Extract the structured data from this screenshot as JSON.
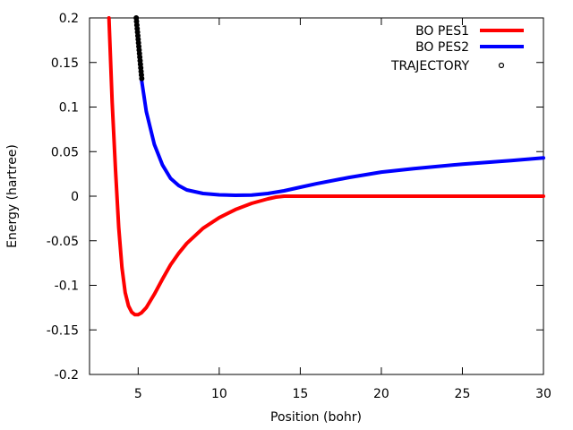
{
  "chart_data": {
    "type": "line",
    "title": "",
    "xlabel": "Position (bohr)",
    "ylabel": "Energy (hartree)",
    "xlim": [
      2,
      30
    ],
    "ylim": [
      -0.2,
      0.2
    ],
    "xticks": [
      "5",
      "10",
      "15",
      "20",
      "25",
      "30"
    ],
    "yticks": [
      "-0.2",
      "-0.15",
      "-0.1",
      "-0.05",
      "0",
      "0.05",
      "0.1",
      "0.15",
      "0.2"
    ],
    "grid": false,
    "legend_position": "top-right",
    "series": [
      {
        "name": "BO PES1",
        "color": "#ff0000",
        "style": "line",
        "x": [
          3.2,
          3.4,
          3.6,
          3.8,
          4.0,
          4.2,
          4.4,
          4.6,
          4.8,
          5.0,
          5.2,
          5.5,
          6.0,
          6.5,
          7.0,
          7.5,
          8.0,
          9.0,
          10.0,
          11.0,
          12.0,
          13.0,
          13.5,
          14.0,
          15.0,
          20.0,
          25.0,
          30.0
        ],
        "y": [
          0.2,
          0.105,
          0.03,
          -0.035,
          -0.08,
          -0.108,
          -0.123,
          -0.13,
          -0.133,
          -0.133,
          -0.131,
          -0.125,
          -0.11,
          -0.093,
          -0.077,
          -0.064,
          -0.053,
          -0.036,
          -0.024,
          -0.015,
          -0.008,
          -0.003,
          -0.001,
          0.0,
          0.0,
          0.0,
          0.0,
          0.0
        ]
      },
      {
        "name": "BO PES2",
        "color": "#0000ff",
        "style": "line",
        "x": [
          5.2,
          5.5,
          6.0,
          6.5,
          7.0,
          7.5,
          8.0,
          9.0,
          10.0,
          11.0,
          12.0,
          13.0,
          14.0,
          15.0,
          16.0,
          18.0,
          20.0,
          22.0,
          25.0,
          28.0,
          30.0
        ],
        "y": [
          0.132,
          0.095,
          0.058,
          0.035,
          0.02,
          0.012,
          0.007,
          0.003,
          0.0015,
          0.001,
          0.0012,
          0.003,
          0.006,
          0.01,
          0.014,
          0.021,
          0.027,
          0.031,
          0.036,
          0.04,
          0.043
        ]
      },
      {
        "name": "TRAJECTORY",
        "color": "#000000",
        "style": "points",
        "x": [
          4.88,
          4.9,
          4.92,
          4.94,
          4.96,
          4.98,
          5.0,
          5.02,
          5.04,
          5.06,
          5.08,
          5.1,
          5.12,
          5.14,
          5.16,
          5.18,
          5.2,
          5.22
        ],
        "y": [
          0.2,
          0.196,
          0.192,
          0.188,
          0.184,
          0.18,
          0.176,
          0.172,
          0.168,
          0.164,
          0.16,
          0.156,
          0.152,
          0.148,
          0.144,
          0.14,
          0.136,
          0.132
        ]
      }
    ]
  }
}
